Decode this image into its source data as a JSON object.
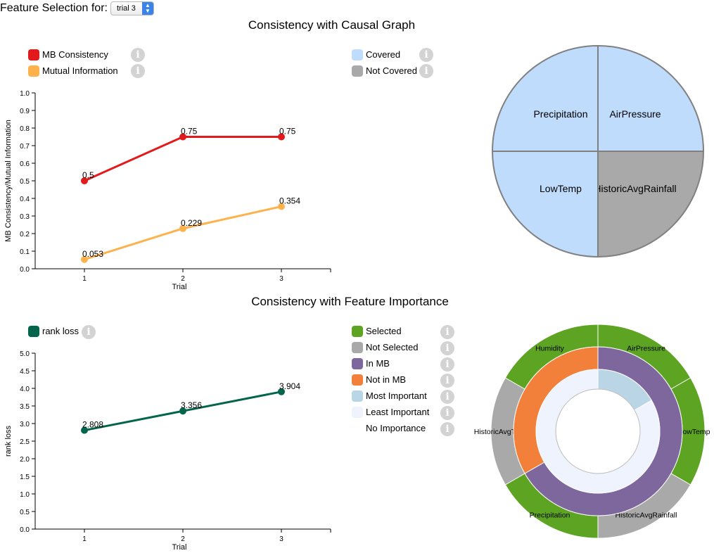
{
  "header": {
    "label": "Feature Selection for:",
    "selected_trial": "trial 3"
  },
  "causal_section": {
    "title": "Consistency with Causal Graph",
    "legend_left": [
      {
        "label": "MB Consistency",
        "color": "#e31a1c"
      },
      {
        "label": "Mutual Information",
        "color": "#feb24c"
      }
    ],
    "legend_right": [
      {
        "label": "Covered",
        "color": "#bfdcfc"
      },
      {
        "label": "Not Covered",
        "color": "#a9a9a9"
      }
    ]
  },
  "importance_section": {
    "title": "Consistency with Feature Importance",
    "legend_left": [
      {
        "label": "rank loss",
        "color": "#04654d"
      }
    ],
    "legend_right": [
      {
        "label": "Selected",
        "color": "#5da423"
      },
      {
        "label": "Not Selected",
        "color": "#a9a9a9"
      },
      {
        "label": "In MB",
        "color": "#7d679c"
      },
      {
        "label": "Not in MB",
        "color": "#f3803a"
      },
      {
        "label": "Most Important",
        "color": "#bad5e6"
      },
      {
        "label": "Least Important",
        "color": "#eef3fd"
      },
      {
        "label": "No Importance",
        "color": "#ffffff"
      }
    ]
  },
  "chart_data": [
    {
      "type": "line",
      "xlabel": "Trial",
      "ylabel": "MB Consistency/Mutual Information",
      "x": [
        1,
        2,
        3
      ],
      "xlim": [
        0.5,
        3.5
      ],
      "ylim": [
        0,
        1
      ],
      "yticks": [
        "0.0",
        "0.1",
        "0.2",
        "0.3",
        "0.4",
        "0.5",
        "0.6",
        "0.7",
        "0.8",
        "0.9",
        "1.0"
      ],
      "series": [
        {
          "name": "MB Consistency",
          "values": [
            0.5,
            0.75,
            0.75
          ],
          "labels": [
            "0.5",
            "0.75",
            "0.75"
          ],
          "color": "#e31a1c"
        },
        {
          "name": "Mutual Information",
          "values": [
            0.053,
            0.229,
            0.354
          ],
          "labels": [
            "0.053",
            "0.229",
            "0.354"
          ],
          "color": "#feb24c"
        }
      ]
    },
    {
      "type": "pie",
      "slices": [
        {
          "label": "AirPressure",
          "value": 1,
          "status": "Covered",
          "color": "#bfdcfc"
        },
        {
          "label": "HistoricAvgRainfall",
          "value": 1,
          "status": "Not Covered",
          "color": "#a9a9a9"
        },
        {
          "label": "LowTemp",
          "value": 1,
          "status": "Covered",
          "color": "#bfdcfc"
        },
        {
          "label": "Precipitation",
          "value": 1,
          "status": "Covered",
          "color": "#bfdcfc"
        }
      ]
    },
    {
      "type": "line",
      "xlabel": "Trial",
      "ylabel": "rank loss",
      "x": [
        1,
        2,
        3
      ],
      "xlim": [
        0.5,
        3.5
      ],
      "ylim": [
        0,
        5
      ],
      "yticks": [
        "0.0",
        "0.5",
        "1.0",
        "1.5",
        "2.0",
        "2.5",
        "3.0",
        "3.5",
        "4.0",
        "4.5",
        "5.0"
      ],
      "series": [
        {
          "name": "rank loss",
          "values": [
            2.808,
            3.356,
            3.904
          ],
          "labels": [
            "2.808",
            "3.356",
            "3.904"
          ],
          "color": "#04654d"
        }
      ]
    },
    {
      "type": "pie",
      "variant": "sunburst",
      "outer_ring": [
        {
          "label": "AirPressure",
          "value": 1,
          "status": "Selected",
          "color": "#5da423"
        },
        {
          "label": "LowTemp",
          "value": 1,
          "status": "Selected",
          "color": "#5da423"
        },
        {
          "label": "HistoricAvgRainfall",
          "value": 1,
          "status": "Not Selected",
          "color": "#a9a9a9"
        },
        {
          "label": "Precipitation",
          "value": 1,
          "status": "Selected",
          "color": "#5da423"
        },
        {
          "label": "HistoricAvgTemp",
          "value": 1,
          "status": "Not Selected",
          "color": "#a9a9a9"
        },
        {
          "label": "Humidity",
          "value": 1,
          "status": "Selected",
          "color": "#5da423"
        }
      ],
      "middle_ring": [
        {
          "value": 4,
          "status": "In MB",
          "color": "#7d679c"
        },
        {
          "value": 2,
          "status": "Not in MB",
          "color": "#f3803a"
        }
      ],
      "inner_ring": [
        {
          "value": 1,
          "status": "Most Important",
          "color": "#bad5e6"
        },
        {
          "value": 5,
          "status": "Least Important",
          "color": "#eef3fd"
        }
      ]
    }
  ]
}
